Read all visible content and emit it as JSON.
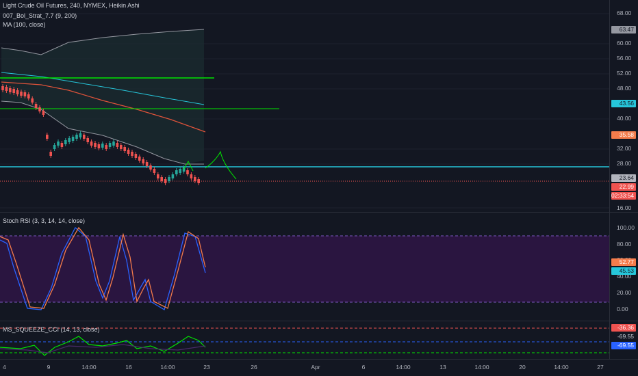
{
  "main_pane": {
    "legend": {
      "symbol": "Light Crude Oil Futures, 240, NYMEX, Heikin Ashi",
      "indicator1": "007_Bol_Strat_7.7 (9, 200)",
      "indicator2": "MA (100, close)"
    },
    "price_ticks": [
      "68.00",
      "60.00",
      "56.00",
      "52.00",
      "48.00",
      "40.00",
      "32.00",
      "28.00",
      "16.00"
    ],
    "badges": [
      {
        "text": "63.47",
        "bg": "#9598a1",
        "fg": "#131722"
      },
      {
        "text": "43.56",
        "bg": "#26c6da",
        "fg": "#131722"
      },
      {
        "text": "35.58",
        "bg": "#f57c4b",
        "fg": "#ffffff"
      },
      {
        "text": "23.64",
        "bg": "#b2b5be",
        "fg": "#131722"
      },
      {
        "text": "22.99",
        "bg": "#ef5350",
        "fg": "#ffffff"
      },
      {
        "text": "02:33:54",
        "bg": "#ef5350",
        "fg": "#ffffff"
      }
    ]
  },
  "rsi_pane": {
    "legend": "Stoch RSI (3, 3, 14, 14, close)",
    "ticks": [
      "100.00",
      "80.00",
      "60.00",
      "40.00",
      "20.00",
      "0.00"
    ],
    "badges": [
      {
        "text": "52.77",
        "bg": "#f57c4b",
        "fg": "#ffffff"
      },
      {
        "text": "45.53",
        "bg": "#26c6da",
        "fg": "#131722"
      }
    ]
  },
  "squeeze_pane": {
    "legend": "MS_SQUEEZE_CCI (14, 13, close)",
    "badges": [
      {
        "text": "-36.36",
        "bg": "#ef5350",
        "fg": "#ffffff"
      },
      {
        "text": "-69.55",
        "bg": "#131722",
        "fg": "#d1d4dc"
      },
      {
        "text": "-69.55",
        "bg": "#2962ff",
        "fg": "#ffffff"
      }
    ]
  },
  "time_axis": [
    "4",
    "9",
    "14:00",
    "16",
    "14:00",
    "23",
    "26",
    "Apr",
    "6",
    "14:00",
    "13",
    "14:00",
    "20",
    "14:00",
    "27"
  ],
  "colors": {
    "background": "#131722",
    "up": "#26a69a",
    "down": "#ef5350",
    "green_line": "#00e600",
    "cyan_line": "#26c6da",
    "ma": "#e0533a",
    "stoch_k": "#2962ff",
    "stoch_d": "#f57c4b",
    "band": "#9598a1",
    "rsi_fill": "#2a1540"
  }
}
